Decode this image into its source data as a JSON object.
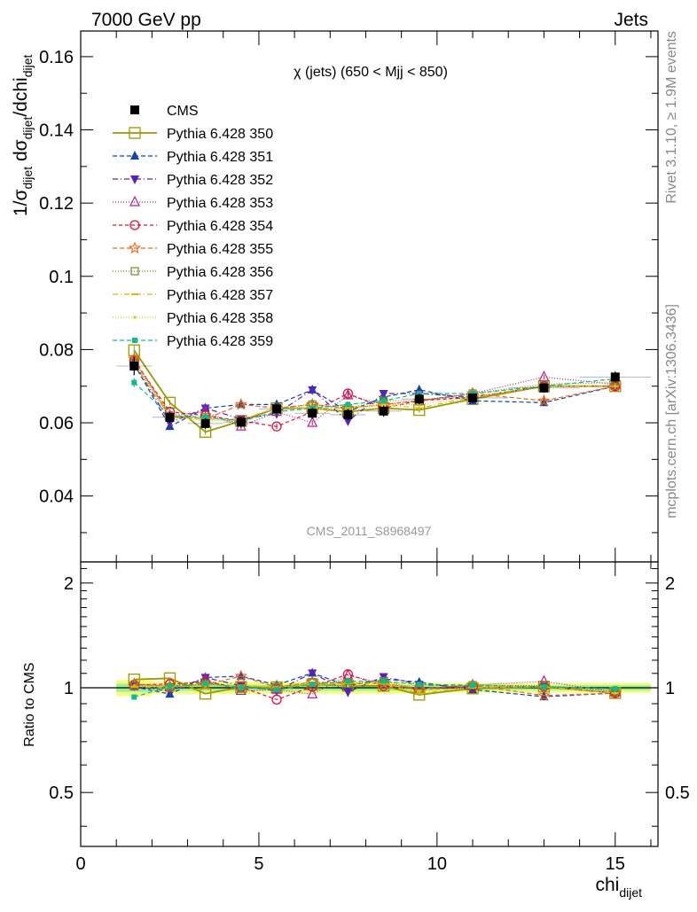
{
  "header": {
    "left": "7000 GeV pp",
    "right": "Jets"
  },
  "side_labels": {
    "rivet": "Rivet 3.1.10, ≥ 1.9M events",
    "mcplots": "mcplots.cern.ch [arXiv:1306.3436]"
  },
  "chart_data": {
    "type": "scatter",
    "title": "χ (jets) (650 < Mjj <  850)",
    "analysis_id": "CMS_2011_S8968497",
    "xlabel": {
      "main": "chi",
      "sub": "dijet"
    },
    "ylabel": {
      "p1": "1/σ",
      "p1sub": "dijet",
      "p2": " dσ",
      "p2sub": "dijet",
      "p3": "/dchi",
      "p3sub": "dijet"
    },
    "ratio_ylabel": "Ratio to CMS",
    "xlim": [
      0,
      16.2
    ],
    "ylim": [
      0.022,
      0.167
    ],
    "ratio_ylim": [
      0.35,
      2.3
    ],
    "x_ticks": [
      0,
      5,
      10,
      15
    ],
    "x_tick_labels": [
      "0",
      "5",
      "10",
      "15"
    ],
    "y_ticks": [
      0.04,
      0.06,
      0.08,
      0.1,
      0.12,
      0.14,
      0.16
    ],
    "y_tick_labels": [
      "0.04",
      "0.06",
      "0.08",
      "0.1",
      "0.12",
      "0.14",
      "0.16"
    ],
    "ratio_ticks": [
      0.5,
      1,
      2
    ],
    "ratio_tick_labels": [
      "0.5",
      "1",
      "2"
    ],
    "legend_position": "top-left",
    "x": [
      1.5,
      2.5,
      3.5,
      4.5,
      5.5,
      6.5,
      7.5,
      8.5,
      9.5,
      11,
      13,
      15
    ],
    "xerr": [
      0.5,
      0.5,
      0.5,
      0.5,
      0.5,
      0.5,
      0.5,
      0.5,
      0.5,
      1,
      1,
      1
    ],
    "cms": {
      "name": "CMS",
      "values": [
        0.0755,
        0.0615,
        0.0598,
        0.0602,
        0.0638,
        0.0626,
        0.0622,
        0.0632,
        0.0665,
        0.0668,
        0.0695,
        0.0725
      ],
      "errors": [
        0.0025,
        0.0015,
        0.0015,
        0.0015,
        0.0015,
        0.0015,
        0.0015,
        0.0015,
        0.0015,
        0.0013,
        0.0013,
        0.0015
      ]
    },
    "series": [
      {
        "name": "Pythia 6.428 350",
        "color": "#999900",
        "marker": "square-open",
        "dash": "",
        "width": 1.8,
        "values": [
          0.0798,
          0.0655,
          0.0575,
          0.0605,
          0.064,
          0.064,
          0.063,
          0.064,
          0.0635,
          0.0665,
          0.07,
          0.07
        ]
      },
      {
        "name": "Pythia 6.428 351",
        "color": "#1144aa",
        "marker": "triangle-up",
        "dash": "5,3",
        "width": 1.2,
        "values": [
          0.076,
          0.059,
          0.064,
          0.065,
          0.065,
          0.069,
          0.063,
          0.067,
          0.069,
          0.066,
          0.0655,
          0.07
        ]
      },
      {
        "name": "Pythia 6.428 352",
        "color": "#5522bb",
        "marker": "triangle-down",
        "dash": "6,3,1,3",
        "width": 1.2,
        "values": [
          0.0765,
          0.06,
          0.064,
          0.061,
          0.0625,
          0.069,
          0.0605,
          0.068,
          0.068,
          0.067,
          0.07,
          0.07
        ]
      },
      {
        "name": "Pythia 6.428 353",
        "color": "#bb2288",
        "marker": "triangle-up-open",
        "dash": "1,2",
        "width": 1.2,
        "values": [
          0.077,
          0.062,
          0.063,
          0.059,
          0.063,
          0.06,
          0.0675,
          0.065,
          0.066,
          0.068,
          0.0725,
          0.0705
        ]
      },
      {
        "name": "Pythia 6.428 354",
        "color": "#dd1133",
        "marker": "circle-open",
        "dash": "4,3",
        "width": 1.2,
        "values": [
          0.077,
          0.063,
          0.062,
          0.0605,
          0.059,
          0.063,
          0.068,
          0.064,
          0.066,
          0.067,
          0.07,
          0.07
        ]
      },
      {
        "name": "Pythia 6.428 355",
        "color": "#ee6611",
        "marker": "star-open",
        "dash": "5,3",
        "width": 1.2,
        "values": [
          0.0775,
          0.062,
          0.061,
          0.065,
          0.064,
          0.065,
          0.064,
          0.065,
          0.066,
          0.068,
          0.066,
          0.07
        ]
      },
      {
        "name": "Pythia 6.428 356",
        "color": "#778822",
        "marker": "square-open-small",
        "dash": "1,2",
        "width": 1.2,
        "values": [
          0.0765,
          0.0615,
          0.0615,
          0.06,
          0.064,
          0.065,
          0.064,
          0.066,
          0.066,
          0.068,
          0.0705,
          0.071
        ]
      },
      {
        "name": "Pythia 6.428 357",
        "color": "#ddbb00",
        "marker": "tick",
        "dash": "6,3,1,3",
        "width": 1.2,
        "values": [
          0.076,
          0.0615,
          0.061,
          0.061,
          0.064,
          0.064,
          0.064,
          0.065,
          0.064,
          0.067,
          0.07,
          0.07
        ]
      },
      {
        "name": "Pythia 6.428 358",
        "color": "#cccc22",
        "marker": "dot",
        "dash": "1,2",
        "width": 1.2,
        "values": [
          0.0765,
          0.062,
          0.0605,
          0.061,
          0.064,
          0.064,
          0.063,
          0.065,
          0.065,
          0.067,
          0.07,
          0.07
        ]
      },
      {
        "name": "Pythia 6.428 359",
        "color": "#11bb88",
        "marker": "square-small",
        "dash": "5,3",
        "width": 1.2,
        "values": [
          0.071,
          0.062,
          0.0615,
          0.0605,
          0.063,
          0.064,
          0.065,
          0.066,
          0.068,
          0.068,
          0.07,
          0.072
        ]
      }
    ]
  }
}
